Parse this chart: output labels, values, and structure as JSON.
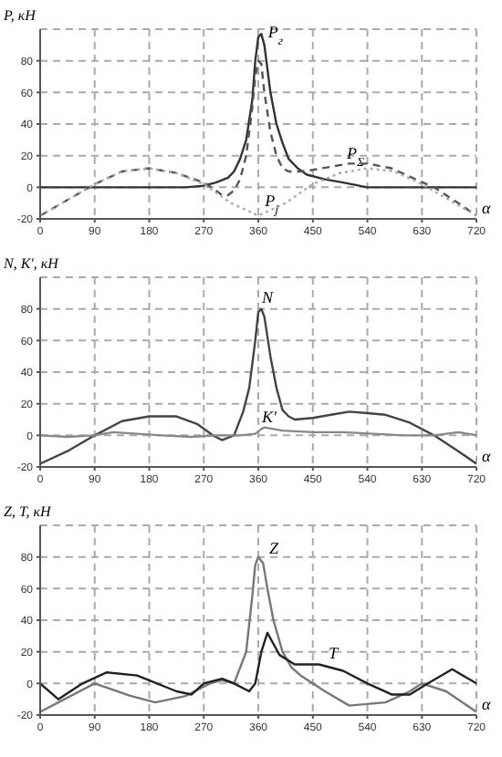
{
  "chart_data": [
    {
      "type": "line",
      "ylabel": "P, кН",
      "xlabel": "α",
      "xlim": [
        0,
        720
      ],
      "xticks": [
        0,
        90,
        180,
        270,
        360,
        450,
        540,
        630,
        720
      ],
      "ylim": [
        -20,
        100
      ],
      "yticks": [
        -20,
        0,
        20,
        40,
        60,
        80
      ],
      "grid": true,
      "marker": "none",
      "series": [
        {
          "color": "#333333",
          "line_style": "solid",
          "x": [
            0,
            90,
            180,
            240,
            270,
            290,
            310,
            320,
            330,
            340,
            350,
            355,
            360,
            365,
            370,
            375,
            380,
            390,
            400,
            410,
            425,
            440,
            470,
            500,
            540,
            580,
            720
          ],
          "values": [
            0,
            0,
            0,
            0,
            1,
            3,
            6,
            10,
            18,
            30,
            55,
            80,
            95,
            97,
            90,
            75,
            60,
            40,
            28,
            18,
            12,
            8,
            5,
            3,
            0,
            0,
            0
          ]
        },
        {
          "color": "#555555",
          "line_style": "dashed",
          "x": [
            0,
            45,
            90,
            135,
            180,
            225,
            270,
            290,
            300,
            310,
            320,
            330,
            340,
            350,
            355,
            360,
            365,
            370,
            380,
            390,
            400,
            410,
            430,
            450,
            480,
            510,
            540,
            580,
            620,
            650,
            690,
            720
          ],
          "values": [
            -18,
            -8,
            2,
            10,
            12,
            9,
            3,
            -2,
            -5,
            -5,
            -2,
            5,
            20,
            50,
            70,
            80,
            78,
            60,
            35,
            20,
            12,
            10,
            10,
            11,
            13,
            15,
            15,
            12,
            5,
            0,
            -10,
            -18
          ]
        },
        {
          "color": "#aaaaaa",
          "line_style": "dotted",
          "x": [
            0,
            45,
            90,
            135,
            180,
            225,
            270,
            315,
            360,
            405,
            450,
            495,
            540,
            585,
            630,
            675,
            720
          ],
          "values": [
            -18,
            -8,
            2,
            10,
            12,
            9,
            2,
            -10,
            -18,
            -10,
            2,
            9,
            12,
            10,
            2,
            -8,
            -18
          ]
        }
      ],
      "annotations": [
        {
          "text": "P$_{г}$",
          "x": 370,
          "y": 95
        },
        {
          "text": "P$_{Σ}$",
          "x": 500,
          "y": 18
        },
        {
          "text": "P$_{j}$",
          "x": 365,
          "y": -12
        }
      ]
    },
    {
      "type": "line",
      "ylabel": "N, K', кН",
      "xlabel": "α",
      "xlim": [
        0,
        720
      ],
      "xticks": [
        0,
        90,
        180,
        270,
        360,
        450,
        540,
        630,
        720
      ],
      "ylim": [
        -20,
        100
      ],
      "yticks": [
        -20,
        0,
        20,
        40,
        60,
        80
      ],
      "grid": true,
      "marker": "none",
      "series": [
        {
          "color": "#444444",
          "line_style": "solid",
          "x": [
            0,
            45,
            90,
            135,
            180,
            225,
            260,
            285,
            300,
            320,
            335,
            345,
            355,
            360,
            365,
            370,
            380,
            390,
            400,
            410,
            420,
            450,
            480,
            510,
            540,
            570,
            610,
            650,
            690,
            720
          ],
          "values": [
            -18,
            -10,
            0,
            9,
            12,
            12,
            7,
            0,
            -3,
            0,
            15,
            30,
            60,
            78,
            80,
            75,
            50,
            30,
            16,
            12,
            10,
            11,
            13,
            15,
            14,
            13,
            8,
            0,
            -10,
            -18
          ]
        },
        {
          "color": "#888888",
          "line_style": "solid",
          "x": [
            0,
            45,
            90,
            120,
            160,
            200,
            250,
            290,
            330,
            355,
            365,
            370,
            385,
            400,
            450,
            500,
            550,
            600,
            650,
            690,
            720
          ],
          "values": [
            0,
            -1,
            0,
            2,
            1,
            0,
            -1,
            0,
            0,
            1,
            4,
            5,
            4,
            3,
            2,
            2,
            1,
            0,
            0,
            2,
            0
          ]
        }
      ],
      "annotations": [
        {
          "text": "N",
          "x": 360,
          "y": 84
        },
        {
          "text": "K'",
          "x": 360,
          "y": 8
        }
      ]
    },
    {
      "type": "line",
      "ylabel": "Z, T, кН",
      "xlabel": "α",
      "xlim": [
        0,
        720
      ],
      "xticks": [
        0,
        90,
        180,
        270,
        360,
        450,
        540,
        630,
        720
      ],
      "ylim": [
        -20,
        100
      ],
      "yticks": [
        -20,
        0,
        20,
        40,
        60,
        80
      ],
      "grid": true,
      "marker": "none",
      "series": [
        {
          "color": "#777777",
          "line_style": "solid",
          "x": [
            0,
            40,
            90,
            150,
            190,
            240,
            280,
            300,
            320,
            340,
            350,
            355,
            360,
            368,
            375,
            385,
            400,
            415,
            430,
            470,
            510,
            570,
            610,
            630,
            670,
            720
          ],
          "values": [
            -18,
            -10,
            0,
            -8,
            -12,
            -8,
            0,
            2,
            0,
            20,
            55,
            75,
            80,
            76,
            60,
            40,
            20,
            10,
            5,
            -5,
            -14,
            -12,
            -5,
            0,
            -5,
            -18
          ]
        },
        {
          "color": "#222222",
          "line_style": "solid",
          "x": [
            0,
            30,
            70,
            110,
            160,
            225,
            250,
            270,
            300,
            320,
            345,
            355,
            365,
            375,
            385,
            395,
            420,
            460,
            500,
            540,
            580,
            610,
            640,
            680,
            720
          ],
          "values": [
            0,
            -10,
            0,
            7,
            5,
            -5,
            -7,
            0,
            3,
            0,
            -5,
            0,
            20,
            32,
            25,
            18,
            12,
            12,
            8,
            0,
            -7,
            -7,
            0,
            9,
            0
          ]
        }
      ],
      "annotations": [
        {
          "text": "Z",
          "x": 372,
          "y": 82
        },
        {
          "text": "T",
          "x": 470,
          "y": 16
        }
      ]
    }
  ]
}
